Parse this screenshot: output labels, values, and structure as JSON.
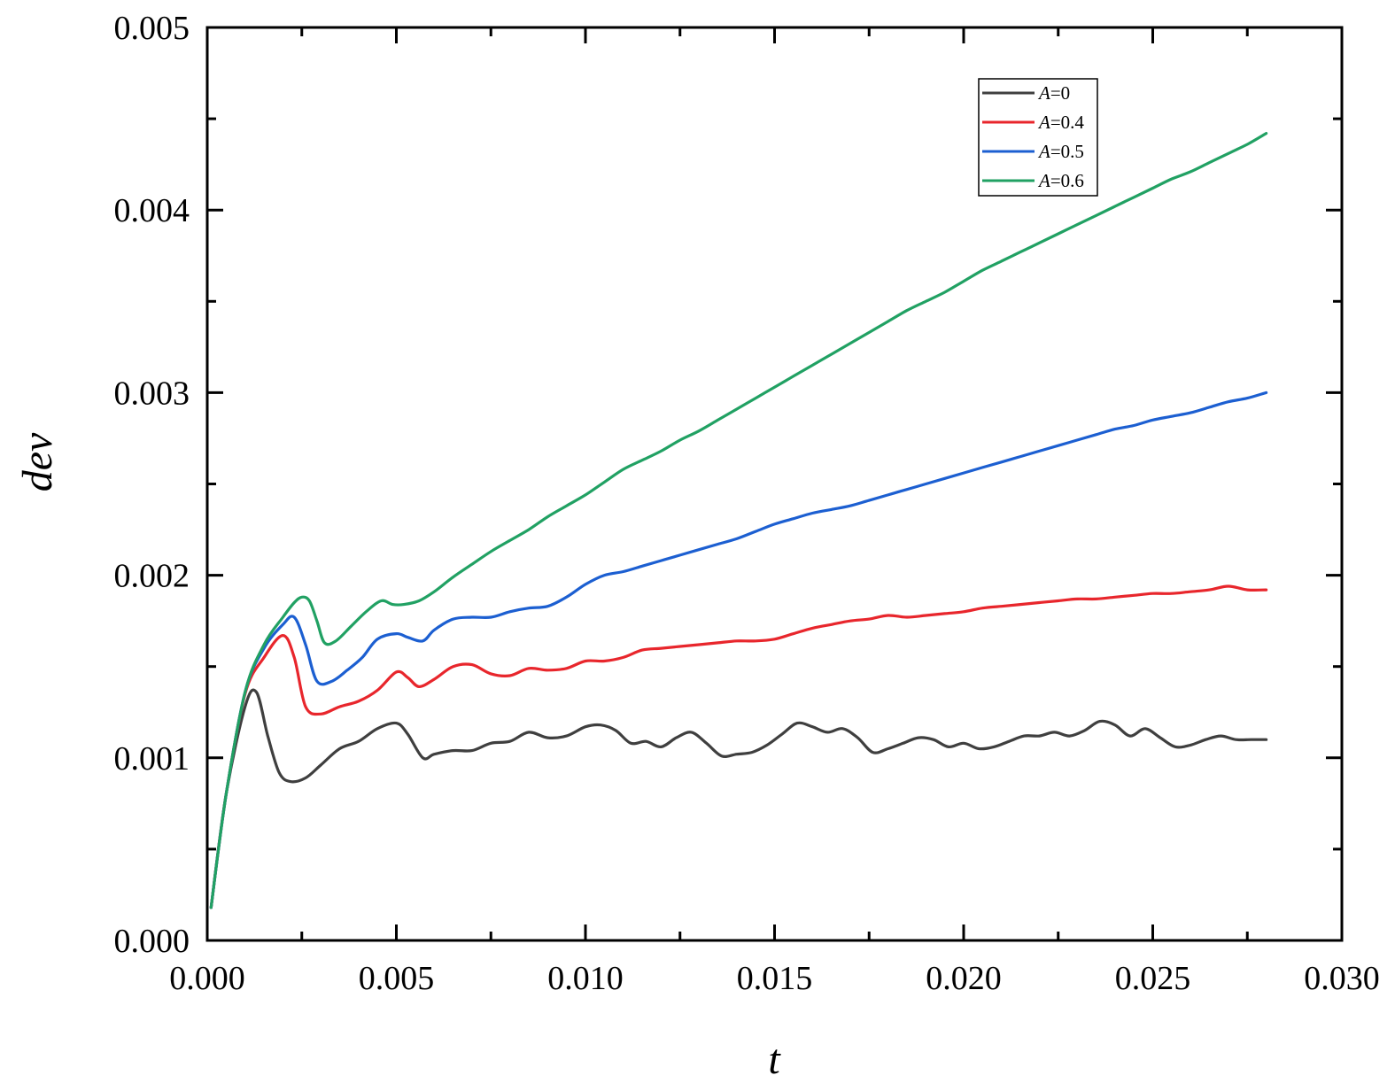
{
  "chart_data": {
    "type": "line",
    "xlabel": "t",
    "ylabel": "dev",
    "xlim": [
      0,
      0.03
    ],
    "ylim": [
      0,
      0.005
    ],
    "x_ticks": [
      "0.000",
      "0.005",
      "0.010",
      "0.015",
      "0.020",
      "0.025",
      "0.030"
    ],
    "y_ticks": [
      "0.000",
      "0.001",
      "0.002",
      "0.003",
      "0.004",
      "0.005"
    ],
    "legend_position": "top-right",
    "grid": false,
    "series": [
      {
        "name": "A=0",
        "name_var": "A",
        "name_val": "=0",
        "color": "#3f3f3f",
        "x": [
          0.0001,
          0.0005,
          0.001,
          0.0013,
          0.0016,
          0.0019,
          0.0022,
          0.0026,
          0.003,
          0.0035,
          0.004,
          0.0045,
          0.005,
          0.0053,
          0.0057,
          0.006,
          0.0065,
          0.007,
          0.0075,
          0.008,
          0.0085,
          0.009,
          0.0095,
          0.01,
          0.0104,
          0.0108,
          0.0112,
          0.0116,
          0.012,
          0.0124,
          0.0128,
          0.0132,
          0.0136,
          0.014,
          0.0144,
          0.0148,
          0.0152,
          0.0156,
          0.016,
          0.0164,
          0.0168,
          0.0172,
          0.0176,
          0.018,
          0.0184,
          0.0188,
          0.0192,
          0.0196,
          0.02,
          0.0204,
          0.0208,
          0.0212,
          0.0216,
          0.022,
          0.0224,
          0.0228,
          0.0232,
          0.0236,
          0.024,
          0.0244,
          0.0248,
          0.0252,
          0.0256,
          0.026,
          0.0264,
          0.0268,
          0.0272,
          0.0276,
          0.028
        ],
        "y": [
          0.00018,
          0.0008,
          0.00128,
          0.00136,
          0.00112,
          0.00092,
          0.00087,
          0.00089,
          0.00096,
          0.00105,
          0.00109,
          0.00116,
          0.00119,
          0.00113,
          0.001,
          0.00102,
          0.00104,
          0.00104,
          0.00108,
          0.00109,
          0.00114,
          0.00111,
          0.00112,
          0.00117,
          0.00118,
          0.00115,
          0.00108,
          0.00109,
          0.00106,
          0.00111,
          0.00114,
          0.00108,
          0.00101,
          0.00102,
          0.00103,
          0.00107,
          0.00113,
          0.00119,
          0.00117,
          0.00114,
          0.00116,
          0.00111,
          0.00103,
          0.00105,
          0.00108,
          0.00111,
          0.0011,
          0.00106,
          0.00108,
          0.00105,
          0.00106,
          0.00109,
          0.00112,
          0.00112,
          0.00114,
          0.00112,
          0.00115,
          0.0012,
          0.00118,
          0.00112,
          0.00116,
          0.00111,
          0.00106,
          0.00107,
          0.0011,
          0.00112,
          0.0011,
          0.0011,
          0.0011
        ]
      },
      {
        "name": "A=0.4",
        "name_var": "A",
        "name_val": "=0.4",
        "color": "#e8262c",
        "x": [
          0.0001,
          0.0005,
          0.001,
          0.0015,
          0.002,
          0.0023,
          0.0026,
          0.003,
          0.0035,
          0.004,
          0.0045,
          0.005,
          0.0053,
          0.0056,
          0.006,
          0.0065,
          0.007,
          0.0075,
          0.008,
          0.0085,
          0.009,
          0.0095,
          0.01,
          0.0105,
          0.011,
          0.0115,
          0.012,
          0.0125,
          0.013,
          0.0135,
          0.014,
          0.0145,
          0.015,
          0.0155,
          0.016,
          0.0165,
          0.017,
          0.0175,
          0.018,
          0.0185,
          0.019,
          0.0195,
          0.02,
          0.0205,
          0.021,
          0.0215,
          0.022,
          0.0225,
          0.023,
          0.0235,
          0.024,
          0.0245,
          0.025,
          0.0255,
          0.026,
          0.0265,
          0.027,
          0.0275,
          0.028
        ],
        "y": [
          0.00018,
          0.0008,
          0.00135,
          0.00155,
          0.00167,
          0.00155,
          0.00128,
          0.00124,
          0.00128,
          0.00131,
          0.00137,
          0.00147,
          0.00144,
          0.00139,
          0.00143,
          0.0015,
          0.00151,
          0.00146,
          0.00145,
          0.00149,
          0.00148,
          0.00149,
          0.00153,
          0.00153,
          0.00155,
          0.00159,
          0.0016,
          0.00161,
          0.00162,
          0.00163,
          0.00164,
          0.00164,
          0.00165,
          0.00168,
          0.00171,
          0.00173,
          0.00175,
          0.00176,
          0.00178,
          0.00177,
          0.00178,
          0.00179,
          0.0018,
          0.00182,
          0.00183,
          0.00184,
          0.00185,
          0.00186,
          0.00187,
          0.00187,
          0.00188,
          0.00189,
          0.0019,
          0.0019,
          0.00191,
          0.00192,
          0.00194,
          0.00192,
          0.00192
        ]
      },
      {
        "name": "A=0.5",
        "name_var": "A",
        "name_val": "=0.5",
        "color": "#1c5fd1",
        "x": [
          0.0001,
          0.0005,
          0.001,
          0.0015,
          0.002,
          0.0023,
          0.0026,
          0.0029,
          0.0033,
          0.0037,
          0.0041,
          0.0045,
          0.005,
          0.0053,
          0.0057,
          0.006,
          0.0065,
          0.007,
          0.0075,
          0.008,
          0.0085,
          0.009,
          0.0095,
          0.01,
          0.0105,
          0.011,
          0.0115,
          0.012,
          0.0125,
          0.013,
          0.0135,
          0.014,
          0.0145,
          0.015,
          0.0155,
          0.016,
          0.0165,
          0.017,
          0.0175,
          0.018,
          0.0185,
          0.019,
          0.0195,
          0.02,
          0.0205,
          0.021,
          0.0215,
          0.022,
          0.0225,
          0.023,
          0.0235,
          0.024,
          0.0245,
          0.025,
          0.0255,
          0.026,
          0.0265,
          0.027,
          0.0275,
          0.028
        ],
        "y": [
          0.00018,
          0.0008,
          0.00136,
          0.0016,
          0.00173,
          0.00177,
          0.00162,
          0.00142,
          0.00142,
          0.00148,
          0.00155,
          0.00165,
          0.00168,
          0.00166,
          0.00164,
          0.0017,
          0.00176,
          0.00177,
          0.00177,
          0.0018,
          0.00182,
          0.00183,
          0.00188,
          0.00195,
          0.002,
          0.00202,
          0.00205,
          0.00208,
          0.00211,
          0.00214,
          0.00217,
          0.0022,
          0.00224,
          0.00228,
          0.00231,
          0.00234,
          0.00236,
          0.00238,
          0.00241,
          0.00244,
          0.00247,
          0.0025,
          0.00253,
          0.00256,
          0.00259,
          0.00262,
          0.00265,
          0.00268,
          0.00271,
          0.00274,
          0.00277,
          0.0028,
          0.00282,
          0.00285,
          0.00287,
          0.00289,
          0.00292,
          0.00295,
          0.00297,
          0.003
        ]
      },
      {
        "name": "A=0.6",
        "name_var": "A",
        "name_val": "=0.6",
        "color": "#21a163",
        "x": [
          0.0001,
          0.0005,
          0.001,
          0.0015,
          0.002,
          0.0023,
          0.0025,
          0.0027,
          0.0029,
          0.0031,
          0.0034,
          0.0038,
          0.0042,
          0.0046,
          0.0049,
          0.0052,
          0.0056,
          0.006,
          0.0065,
          0.007,
          0.0075,
          0.008,
          0.0085,
          0.009,
          0.0095,
          0.01,
          0.0105,
          0.011,
          0.0115,
          0.012,
          0.0125,
          0.013,
          0.0135,
          0.014,
          0.0145,
          0.015,
          0.0155,
          0.016,
          0.0165,
          0.017,
          0.0175,
          0.018,
          0.0185,
          0.019,
          0.0195,
          0.02,
          0.0205,
          0.021,
          0.0215,
          0.022,
          0.0225,
          0.023,
          0.0235,
          0.024,
          0.0245,
          0.025,
          0.0255,
          0.026,
          0.0265,
          0.027,
          0.0275,
          0.028
        ],
        "y": [
          0.00018,
          0.0008,
          0.00136,
          0.00162,
          0.00177,
          0.00185,
          0.00188,
          0.00186,
          0.00175,
          0.00163,
          0.00164,
          0.00172,
          0.0018,
          0.00186,
          0.00184,
          0.00184,
          0.00186,
          0.00191,
          0.00199,
          0.00206,
          0.00213,
          0.00219,
          0.00225,
          0.00232,
          0.00238,
          0.00244,
          0.00251,
          0.00258,
          0.00263,
          0.00268,
          0.00274,
          0.00279,
          0.00285,
          0.00291,
          0.00297,
          0.00303,
          0.00309,
          0.00315,
          0.00321,
          0.00327,
          0.00333,
          0.00339,
          0.00345,
          0.0035,
          0.00355,
          0.00361,
          0.00367,
          0.00372,
          0.00377,
          0.00382,
          0.00387,
          0.00392,
          0.00397,
          0.00402,
          0.00407,
          0.00412,
          0.00417,
          0.00421,
          0.00426,
          0.00431,
          0.00436,
          0.00442
        ]
      }
    ]
  }
}
